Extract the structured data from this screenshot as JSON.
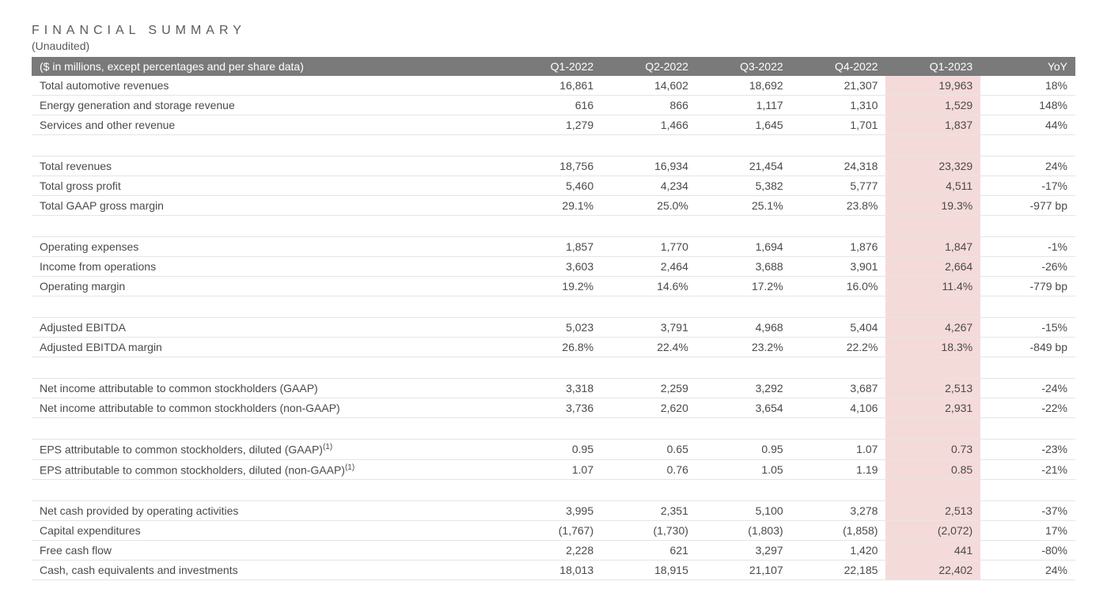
{
  "title": "FINANCIAL SUMMARY",
  "subtitle": "(Unaudited)",
  "header_label": "($ in millions, except percentages and per share data)",
  "columns": [
    "Q1-2022",
    "Q2-2022",
    "Q3-2022",
    "Q4-2022",
    "Q1-2023",
    "YoY"
  ],
  "highlight_column_index": 4,
  "colors": {
    "header_bg": "#7a7a7a",
    "header_text": "#ffffff",
    "highlight_bg": "#f5dada",
    "row_border": "#e5e5e5",
    "text": "#4a4a4a"
  },
  "groups": [
    {
      "rows": [
        {
          "label": "Total automotive revenues",
          "values": [
            "16,861",
            "14,602",
            "18,692",
            "21,307",
            "19,963",
            "18%"
          ]
        },
        {
          "label": "Energy generation and storage revenue",
          "values": [
            "616",
            "866",
            "1,117",
            "1,310",
            "1,529",
            "148%"
          ]
        },
        {
          "label": "Services and other revenue",
          "values": [
            "1,279",
            "1,466",
            "1,645",
            "1,701",
            "1,837",
            "44%"
          ]
        }
      ]
    },
    {
      "rows": [
        {
          "label": "Total revenues",
          "values": [
            "18,756",
            "16,934",
            "21,454",
            "24,318",
            "23,329",
            "24%"
          ]
        },
        {
          "label": "Total gross profit",
          "values": [
            "5,460",
            "4,234",
            "5,382",
            "5,777",
            "4,511",
            "-17%"
          ]
        },
        {
          "label": "Total GAAP gross margin",
          "values": [
            "29.1%",
            "25.0%",
            "25.1%",
            "23.8%",
            "19.3%",
            "-977 bp"
          ]
        }
      ]
    },
    {
      "rows": [
        {
          "label": "Operating expenses",
          "values": [
            "1,857",
            "1,770",
            "1,694",
            "1,876",
            "1,847",
            "-1%"
          ]
        },
        {
          "label": "Income from operations",
          "values": [
            "3,603",
            "2,464",
            "3,688",
            "3,901",
            "2,664",
            "-26%"
          ]
        },
        {
          "label": "Operating margin",
          "values": [
            "19.2%",
            "14.6%",
            "17.2%",
            "16.0%",
            "11.4%",
            "-779 bp"
          ]
        }
      ]
    },
    {
      "rows": [
        {
          "label": "Adjusted EBITDA",
          "values": [
            "5,023",
            "3,791",
            "4,968",
            "5,404",
            "4,267",
            "-15%"
          ]
        },
        {
          "label": "Adjusted EBITDA margin",
          "values": [
            "26.8%",
            "22.4%",
            "23.2%",
            "22.2%",
            "18.3%",
            "-849 bp"
          ]
        }
      ]
    },
    {
      "rows": [
        {
          "label": "Net income attributable to common stockholders (GAAP)",
          "values": [
            "3,318",
            "2,259",
            "3,292",
            "3,687",
            "2,513",
            "-24%"
          ]
        },
        {
          "label": "Net income attributable to common stockholders (non-GAAP)",
          "values": [
            "3,736",
            "2,620",
            "3,654",
            "4,106",
            "2,931",
            "-22%"
          ]
        }
      ]
    },
    {
      "rows": [
        {
          "label": "EPS attributable to common stockholders, diluted (GAAP)",
          "footnote": "(1)",
          "values": [
            "0.95",
            "0.65",
            "0.95",
            "1.07",
            "0.73",
            "-23%"
          ]
        },
        {
          "label": "EPS attributable to common stockholders, diluted (non-GAAP)",
          "footnote": "(1)",
          "values": [
            "1.07",
            "0.76",
            "1.05",
            "1.19",
            "0.85",
            "-21%"
          ]
        }
      ]
    },
    {
      "rows": [
        {
          "label": "Net cash provided by operating activities",
          "values": [
            "3,995",
            "2,351",
            "5,100",
            "3,278",
            "2,513",
            "-37%"
          ]
        },
        {
          "label": "Capital expenditures",
          "values": [
            "(1,767)",
            "(1,730)",
            "(1,803)",
            "(1,858)",
            "(2,072)",
            "17%"
          ]
        },
        {
          "label": "Free cash flow",
          "values": [
            "2,228",
            "621",
            "3,297",
            "1,420",
            "441",
            "-80%"
          ]
        },
        {
          "label": "Cash, cash equivalents and investments",
          "values": [
            "18,013",
            "18,915",
            "21,107",
            "22,185",
            "22,402",
            "24%"
          ]
        }
      ]
    }
  ]
}
